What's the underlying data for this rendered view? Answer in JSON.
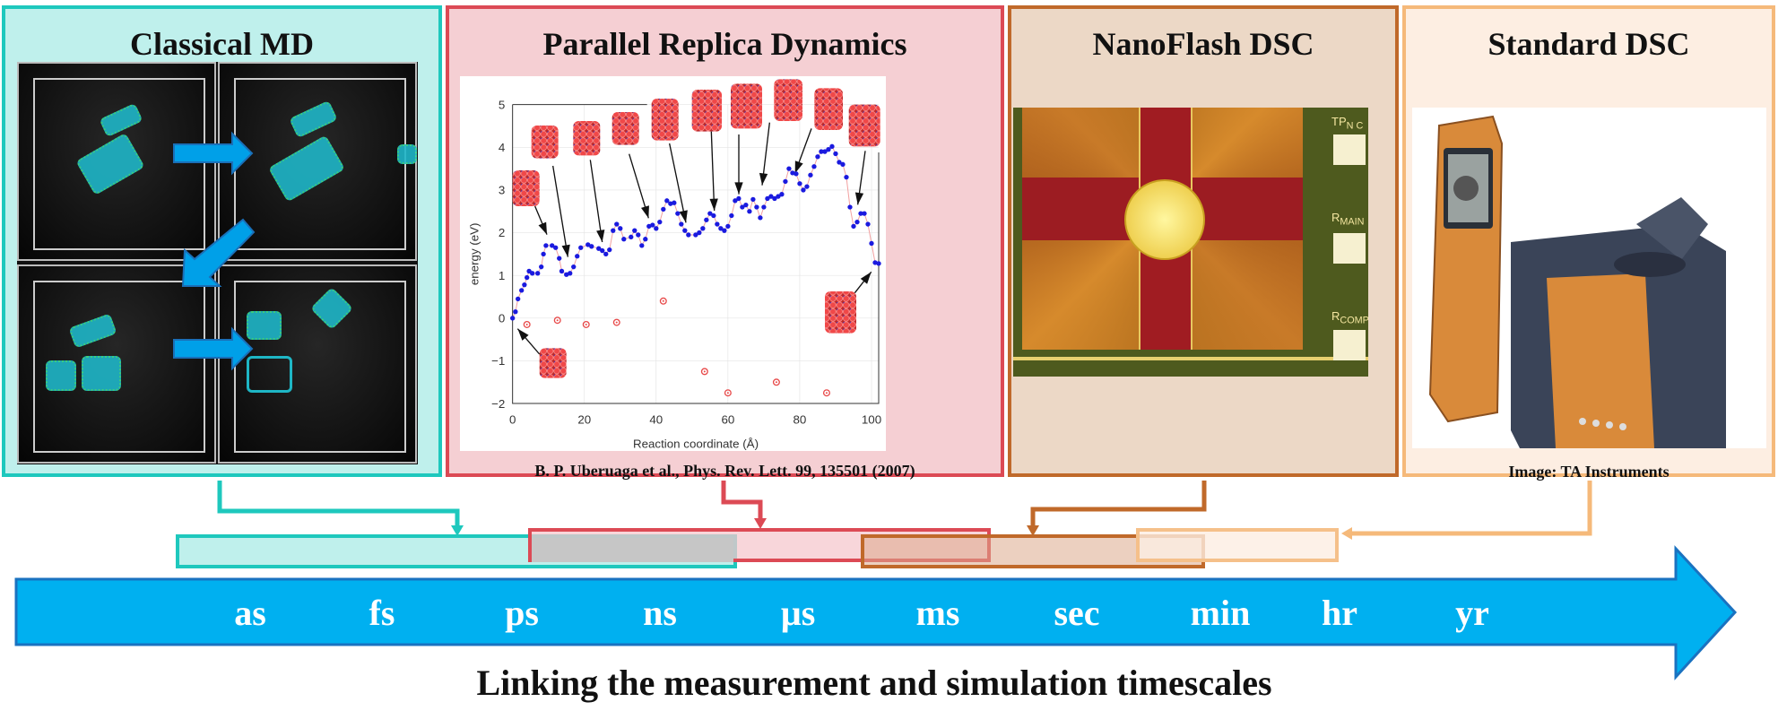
{
  "panels": [
    {
      "title": "Classical MD",
      "color": "#1ec8bd"
    },
    {
      "title": "Parallel Replica Dynamics",
      "color": "#dc4a55",
      "citation": "B. P. Uberuaga et al., Phys. Rev. Lett. 99, 135501 (2007)"
    },
    {
      "title": "NanoFlash DSC",
      "color": "#c0692a",
      "chip_labels": [
        "TP",
        "N C",
        "R",
        "MAIN",
        "R",
        "COMP"
      ]
    },
    {
      "title": "Standard DSC",
      "color": "#f5b97a",
      "credit": "Image: TA Instruments"
    }
  ],
  "timescale": {
    "labels": [
      "as",
      "fs",
      "ps",
      "ns",
      "µs",
      "ms",
      "sec",
      "min",
      "hr",
      "yr"
    ],
    "arrow_color": "#00b0f0"
  },
  "caption": "Linking the measurement and simulation timescales",
  "chart_data": {
    "type": "scatter",
    "xlabel": "Reaction coordinate (Å)",
    "ylabel": "energy (eV)",
    "xlim": [
      0,
      102
    ],
    "ylim": [
      -2,
      5
    ],
    "xticks": [
      "0",
      "20",
      "40",
      "60",
      "80",
      "100"
    ],
    "yticks": [
      "−2",
      "−1",
      "0",
      "1",
      "2",
      "3",
      "4",
      "5"
    ],
    "grid": true,
    "series": [
      {
        "color": "#1a1adf",
        "marker": "filled-circle",
        "line_color": "#f2a0a0",
        "x": [
          0,
          0.8,
          1.5,
          2.5,
          3.3,
          4,
          4.6,
          5.5,
          7,
          8,
          8.6,
          9.3,
          11,
          12,
          13,
          13.7,
          15,
          16,
          17,
          18,
          19,
          21,
          22,
          24,
          25,
          26,
          27,
          28,
          29,
          30,
          31,
          33,
          34,
          35,
          36,
          37,
          38,
          39,
          40,
          41,
          42,
          43,
          44,
          45,
          46,
          47,
          48,
          49,
          51,
          52,
          53,
          54,
          55,
          56,
          57,
          58,
          59,
          60,
          61,
          62,
          63,
          64,
          65,
          66,
          67,
          68,
          69,
          70,
          71,
          72,
          73,
          74,
          75,
          76,
          77,
          78,
          79,
          80,
          81,
          82,
          83,
          84,
          85,
          86,
          87,
          88,
          89,
          90,
          91,
          92,
          93,
          94,
          95,
          96,
          97,
          98,
          99,
          100,
          101,
          102
        ],
        "y": [
          0,
          0.15,
          0.45,
          0.65,
          0.78,
          0.95,
          1.1,
          1.05,
          1.05,
          1.2,
          1.5,
          1.7,
          1.7,
          1.65,
          1.4,
          1.1,
          1.02,
          1.05,
          1.2,
          1.45,
          1.65,
          1.72,
          1.68,
          1.63,
          1.58,
          1.5,
          1.6,
          2.05,
          2.2,
          2.1,
          1.85,
          1.9,
          2.05,
          1.95,
          1.7,
          1.85,
          2.15,
          2.18,
          2.1,
          2.25,
          2.55,
          2.75,
          2.68,
          2.7,
          2.45,
          2.2,
          2.05,
          1.95,
          1.95,
          2.0,
          2.1,
          2.3,
          2.45,
          2.4,
          2.2,
          2.1,
          2.05,
          2.15,
          2.4,
          2.75,
          2.8,
          2.6,
          2.65,
          2.5,
          2.78,
          2.6,
          2.35,
          2.6,
          2.8,
          2.85,
          2.8,
          2.85,
          2.9,
          3.2,
          3.5,
          3.4,
          3.38,
          3.15,
          3.0,
          3.08,
          3.35,
          3.55,
          3.78,
          3.9,
          3.9,
          3.95,
          4.02,
          3.85,
          3.65,
          3.6,
          3.3,
          2.6,
          2.15,
          2.25,
          2.45,
          2.45,
          2.2,
          1.75,
          1.3,
          1.28
        ]
      },
      {
        "color": "#e84a4a",
        "marker": "open-circle",
        "x": [
          4,
          12.5,
          20.5,
          29,
          42,
          53.5,
          60,
          73.5,
          87.5
        ],
        "y": [
          -0.15,
          -0.05,
          -0.15,
          -0.1,
          0.4,
          -1.25,
          -1.75,
          -1.5,
          -1.75
        ]
      }
    ]
  }
}
